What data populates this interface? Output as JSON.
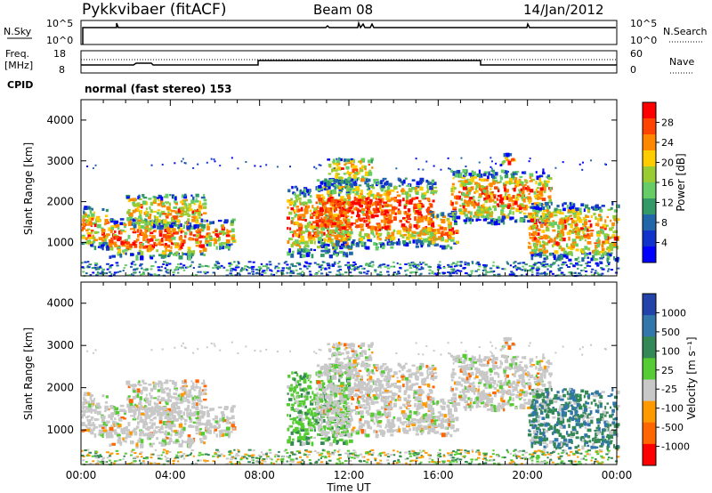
{
  "header": {
    "station": "Pykkvibaer (fitACF)",
    "beam": "Beam 08",
    "date": "14/Jan/2012"
  },
  "noise_panel": {
    "left_label": "N.Sky",
    "left_ticks": [
      "10^5",
      "10^0"
    ],
    "right_ticks": [
      "10^5",
      "10^0"
    ],
    "right_label": "N.Search"
  },
  "freq_panel": {
    "left_label_line1": "Freq.",
    "left_label_line2": "[MHz]",
    "left_ticks": [
      "18",
      "8"
    ],
    "right_ticks": [
      "60",
      "0"
    ],
    "right_label": "Nave",
    "cpid_label": "CPID",
    "mode_text": "normal (fast stereo) 153"
  },
  "chart_data": [
    {
      "type": "heatmap",
      "name": "power",
      "ylabel": "Slant Range [km]",
      "yticks": [
        "4000",
        "3000",
        "2000",
        "1000"
      ],
      "ylim": [
        180,
        4500
      ],
      "colorbar_label": "Power [dB]",
      "colorbar_ticks": [
        "28",
        "24",
        "20",
        "16",
        "12",
        "8",
        "4"
      ],
      "colorbar_colors": [
        "#ff0000",
        "#ff4400",
        "#ff8800",
        "#ffcc00",
        "#99cc33",
        "#66cc66",
        "#339966",
        "#2266aa",
        "#1133cc",
        "#0000ff"
      ],
      "scatter_echo_region_km": [
        180,
        400
      ]
    },
    {
      "type": "heatmap",
      "name": "velocity",
      "ylabel": "Slant Range [km]",
      "yticks": [
        "4000",
        "3000",
        "2000",
        "1000"
      ],
      "ylim": [
        180,
        4500
      ],
      "colorbar_label": "Velocity [m s⁻¹]",
      "colorbar_ticks": [
        "1000",
        "500",
        "100",
        "25",
        "-25",
        "-100",
        "-500",
        "-1000"
      ],
      "colorbar_colors": [
        "#2244aa",
        "#3377aa",
        "#338855",
        "#55cc33",
        "#c8c8c8",
        "#ff9900",
        "#ff6600",
        "#ff0000"
      ],
      "xlabel": "Time UT",
      "xticks": [
        "00:00",
        "04:00",
        "08:00",
        "12:00",
        "16:00",
        "20:00",
        "00:00"
      ]
    }
  ]
}
